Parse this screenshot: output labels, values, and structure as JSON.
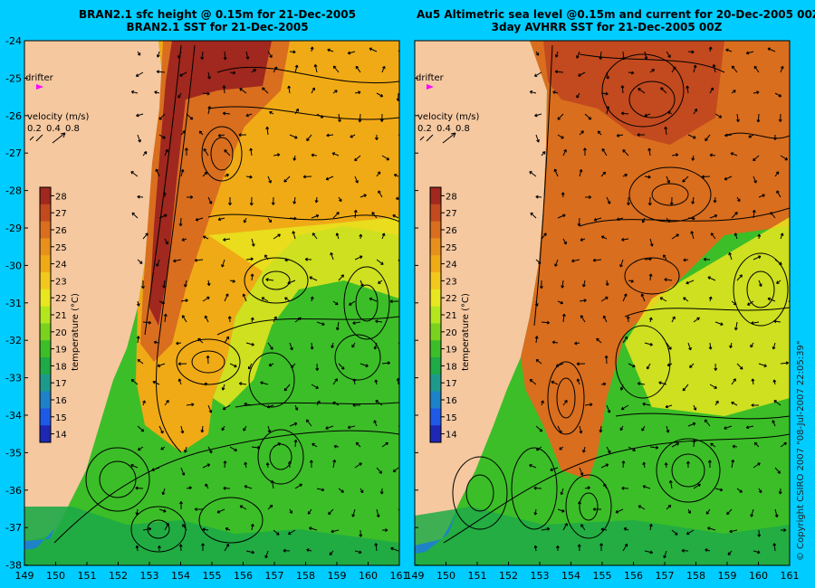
{
  "left_panel": {
    "title_line1": "BRAN2.1 sfc height @ 0.15m for 21-Dec-2005",
    "title_line2": "BRAN2.1 SST for 21-Dec-2005",
    "drifter_label": "drifter",
    "velocity_label": "velocity (m/s)",
    "velocity_scale": [
      "0.2",
      "0.4",
      "0.8"
    ]
  },
  "right_panel": {
    "title_line1": "Au5 Altimetric sea level  @0.15m and current for 20-Dec-2005 00Z",
    "title_line2": "3day AVHRR SST for 21-Dec-2005 00Z",
    "drifter_label": "drifter",
    "velocity_label": "velocity (m/s)",
    "velocity_scale": [
      "0.2",
      "0.4",
      "0.8"
    ]
  },
  "colorbar": {
    "label": "temperature (°C)",
    "ticks": [
      "28",
      "27",
      "26",
      "25",
      "24",
      "23",
      "22",
      "21",
      "20",
      "19",
      "18",
      "17",
      "16",
      "15",
      "14"
    ],
    "colors": [
      "#a0281e",
      "#c24a1e",
      "#d96e1e",
      "#e8901c",
      "#f0aa16",
      "#f2c81c",
      "#e8e61e",
      "#b4e61e",
      "#7ad21e",
      "#3cbe28",
      "#1eaa46",
      "#1e9a8c",
      "#1e82c8",
      "#1e5ae6",
      "#1e28b4"
    ]
  },
  "x_ticks": [
    "149",
    "150",
    "151",
    "152",
    "153",
    "154",
    "155",
    "156",
    "157",
    "158",
    "159",
    "160",
    "161"
  ],
  "y_ticks": [
    "-24",
    "-25",
    "-26",
    "-27",
    "-28",
    "-29",
    "-30",
    "-31",
    "-32",
    "-33",
    "-34",
    "-35",
    "-36",
    "-37",
    "-38"
  ],
  "copyright": "© Copyright CSIRO 2007 \"08-Jul-2007 22:05:39\"",
  "colors": {
    "background": "#00ccff",
    "land": "#f5c8a0",
    "drifter": "#ff00ff"
  }
}
